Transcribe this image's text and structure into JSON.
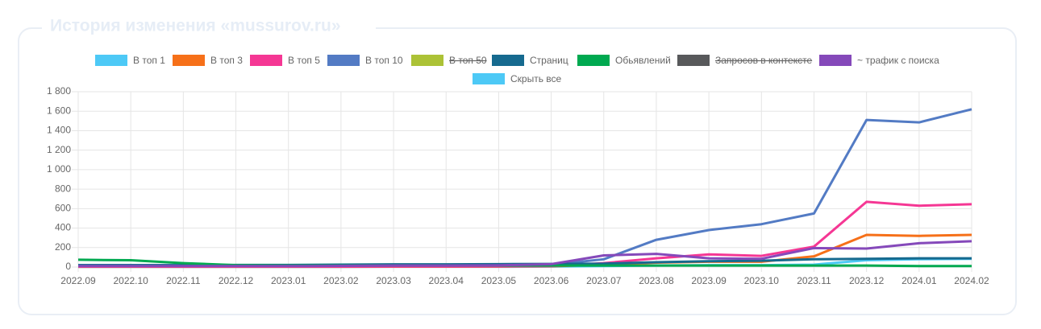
{
  "chart_data": {
    "type": "line",
    "title": "История изменения «mussurov.ru»",
    "categories": [
      "2022.09",
      "2022.10",
      "2022.11",
      "2022.12",
      "2023.01",
      "2023.02",
      "2023.03",
      "2023.04",
      "2023.05",
      "2023.06",
      "2023.07",
      "2023.08",
      "2023.09",
      "2023.10",
      "2023.11",
      "2023.12",
      "2024.01",
      "2024.02"
    ],
    "series": [
      {
        "name": "В топ 1",
        "color": "#4dc9f6",
        "values": [
          2,
          2,
          2,
          2,
          2,
          2,
          3,
          3,
          3,
          5,
          10,
          15,
          20,
          20,
          25,
          70,
          80,
          85
        ]
      },
      {
        "name": "В топ 3",
        "color": "#f67019",
        "values": [
          3,
          3,
          3,
          3,
          3,
          3,
          4,
          4,
          5,
          8,
          25,
          45,
          55,
          55,
          110,
          330,
          320,
          330
        ]
      },
      {
        "name": "В топ 5",
        "color": "#f53794",
        "values": [
          5,
          5,
          5,
          5,
          5,
          5,
          6,
          6,
          7,
          10,
          40,
          90,
          130,
          115,
          210,
          670,
          630,
          645
        ]
      },
      {
        "name": "В топ 10",
        "color": "#537bc4",
        "values": [
          20,
          20,
          18,
          15,
          15,
          18,
          20,
          20,
          22,
          25,
          80,
          280,
          380,
          440,
          550,
          1510,
          1485,
          1620
        ]
      },
      {
        "name": "В топ 50",
        "color": "#acc236",
        "hidden": true,
        "values": [
          null,
          null,
          null,
          null,
          null,
          null,
          null,
          null,
          null,
          null,
          null,
          null,
          null,
          null,
          null,
          null,
          null,
          null
        ]
      },
      {
        "name": "Страниц",
        "color": "#166a8f",
        "values": [
          20,
          20,
          20,
          22,
          22,
          25,
          28,
          28,
          30,
          32,
          35,
          50,
          60,
          65,
          80,
          85,
          90,
          90
        ]
      },
      {
        "name": "Обьявлений",
        "color": "#00a950",
        "values": [
          75,
          70,
          40,
          20,
          15,
          15,
          15,
          15,
          15,
          15,
          15,
          15,
          15,
          15,
          15,
          15,
          10,
          10
        ]
      },
      {
        "name": "Запросов в контексте",
        "color": "#58595b",
        "hidden": true,
        "values": [
          null,
          null,
          null,
          null,
          null,
          null,
          null,
          null,
          null,
          null,
          null,
          null,
          null,
          null,
          null,
          null,
          null,
          null
        ]
      },
      {
        "name": "~ трафик с поиска",
        "color": "#8549ba",
        "values": [
          10,
          10,
          10,
          10,
          10,
          12,
          15,
          15,
          18,
          30,
          120,
          135,
          90,
          85,
          195,
          190,
          245,
          265
        ]
      }
    ],
    "toggle_all": {
      "label": "Скрыть все",
      "color": "#4dc9f6"
    },
    "ylim": [
      0,
      1800
    ],
    "yticks": [
      0,
      200,
      400,
      600,
      800,
      {
        "value": 1000,
        "label": "1 000"
      },
      {
        "value": 1200,
        "label": "1 200"
      },
      {
        "value": 1400,
        "label": "1 400"
      },
      {
        "value": 1600,
        "label": "1 600"
      },
      {
        "value": 1800,
        "label": "1 800"
      }
    ],
    "grid": true
  }
}
